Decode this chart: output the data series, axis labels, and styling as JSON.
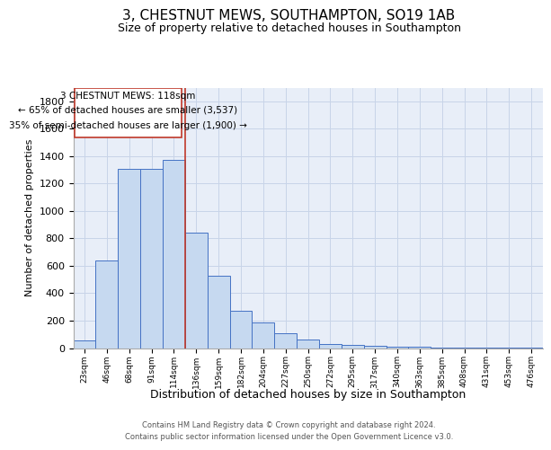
{
  "title": "3, CHESTNUT MEWS, SOUTHAMPTON, SO19 1AB",
  "subtitle": "Size of property relative to detached houses in Southampton",
  "xlabel": "Distribution of detached houses by size in Southampton",
  "ylabel": "Number of detached properties",
  "footnote1": "Contains HM Land Registry data © Crown copyright and database right 2024.",
  "footnote2": "Contains public sector information licensed under the Open Government Licence v3.0.",
  "annotation_line1": "3 CHESTNUT MEWS: 118sqm",
  "annotation_line2": "← 65% of detached houses are smaller (3,537)",
  "annotation_line3": "35% of semi-detached houses are larger (1,900) →",
  "bar_labels": [
    "23sqm",
    "46sqm",
    "68sqm",
    "91sqm",
    "114sqm",
    "136sqm",
    "159sqm",
    "182sqm",
    "204sqm",
    "227sqm",
    "250sqm",
    "272sqm",
    "295sqm",
    "317sqm",
    "340sqm",
    "363sqm",
    "385sqm",
    "408sqm",
    "431sqm",
    "453sqm",
    "476sqm"
  ],
  "bar_values": [
    55,
    640,
    1305,
    1310,
    1375,
    840,
    525,
    275,
    185,
    110,
    65,
    30,
    25,
    15,
    10,
    8,
    5,
    3,
    2,
    1,
    1
  ],
  "bar_color": "#c6d9f0",
  "bar_edge_color": "#4472c4",
  "vline_x": 4.5,
  "vline_color": "#c0392b",
  "ylim": [
    0,
    1900
  ],
  "yticks": [
    0,
    200,
    400,
    600,
    800,
    1000,
    1200,
    1400,
    1600,
    1800
  ],
  "grid_color": "#c8d4e8",
  "bg_color": "#e8eef8",
  "annotation_box_color": "#c0392b",
  "title_fontsize": 11,
  "subtitle_fontsize": 9,
  "ylabel_fontsize": 8,
  "xlabel_fontsize": 9,
  "tick_fontsize": 8,
  "xtick_fontsize": 6.5,
  "footnote_fontsize": 6,
  "ann_fontsize": 7.5
}
